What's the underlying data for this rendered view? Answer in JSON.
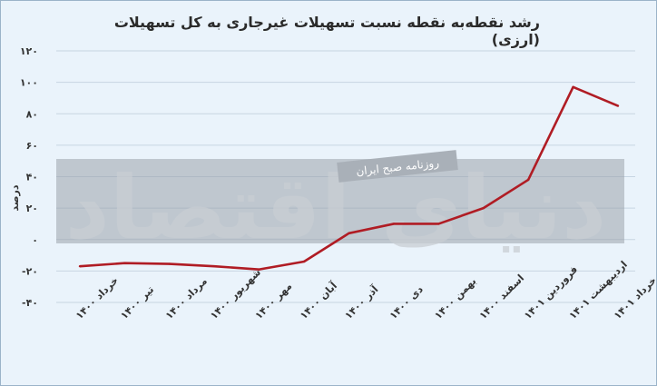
{
  "chart_data": {
    "type": "line",
    "title": "رشد نقطه‌به نقطه نسبت تسهیلات غیرجاری به کل تسهیلات (ارزی)",
    "ylabel": "درصد",
    "xlabel": "",
    "categories": [
      "خرداد ۱۴۰۰",
      "تیر ۱۴۰۰",
      "مرداد ۱۴۰۰",
      "شهریور ۱۴۰۰",
      "مهر ۱۴۰۰",
      "آبان ۱۴۰۰",
      "آذر ۱۴۰۰",
      "دی ۱۴۰۰",
      "بهمن ۱۴۰۰",
      "اسفند ۱۴۰۰",
      "فروردین ۱۴۰۱",
      "اردیبهشت ۱۴۰۱",
      "خرداد ۱۴۰۱"
    ],
    "series": [
      {
        "values": [
          -17,
          -15,
          -15.5,
          -17,
          -19,
          -14,
          4,
          10,
          10,
          20,
          38,
          97,
          85
        ]
      }
    ],
    "ylim": [
      -40,
      120
    ],
    "yticks": [
      -40,
      -20,
      0,
      20,
      40,
      60,
      80,
      100,
      120
    ],
    "ytick_labels": [
      "-۴۰",
      "-۲۰",
      "۰",
      "۲۰",
      "۴۰",
      "۶۰",
      "۸۰",
      "۱۰۰",
      "۱۲۰"
    ],
    "grid": true,
    "line_color": "#b01c24"
  },
  "watermark": {
    "brand": "دنیای اقتصاد",
    "tagline": "روزنامه صبح ایران"
  },
  "colors": {
    "background": "#eaf3fb",
    "grid": "#c7d5e2",
    "band": "#9aa2ab"
  }
}
